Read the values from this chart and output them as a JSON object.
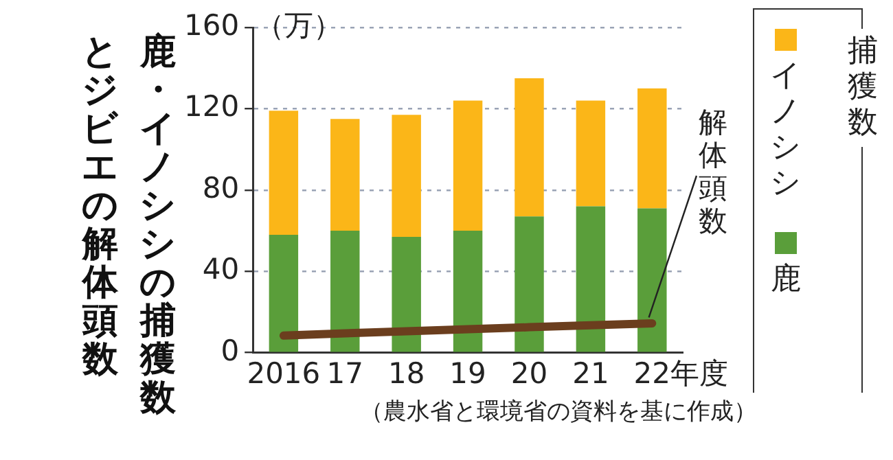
{
  "chart_data": {
    "type": "bar",
    "title": "鹿・イノシシの捕獲数",
    "subtitle": "とジビエの解体頭数",
    "ylabel": "（万）",
    "xlabel": "年度",
    "legend_title": "捕獲数",
    "categories": [
      "2016",
      "17",
      "18",
      "19",
      "20",
      "21",
      "22"
    ],
    "stacked": true,
    "series": [
      {
        "name": "鹿",
        "color": "#5a9e3a",
        "values": [
          58,
          60,
          57,
          60,
          67,
          72,
          71
        ]
      },
      {
        "name": "イノシシ",
        "color": "#fbb618",
        "values": [
          61,
          55,
          60,
          64,
          68,
          52,
          59
        ]
      },
      {
        "name": "解体頭数",
        "type": "line",
        "color": "#6b3e1e",
        "values": [
          8.4,
          9.5,
          10.5,
          11.5,
          12.5,
          13.5,
          14.4
        ],
        "marker": "none"
      }
    ],
    "ylim": [
      0,
      160
    ],
    "yticks": [
      0,
      40,
      80,
      120,
      160
    ],
    "grid": "y",
    "legend": "right",
    "annotations": [
      "（農水省と環境省の資料を基に作成）"
    ]
  }
}
